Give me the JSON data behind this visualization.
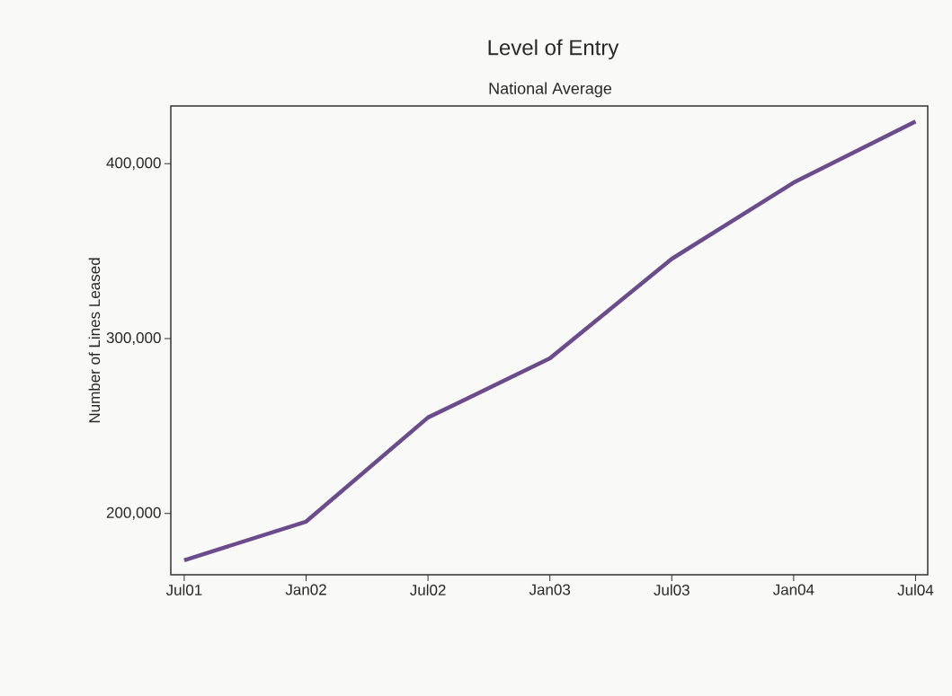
{
  "chart_data": {
    "type": "line",
    "title": "Level of Entry",
    "subtitle": "National Average",
    "ylabel": "Number of Lines Leased",
    "categories": [
      "Jul01",
      "Jan02",
      "Jul02",
      "Jan03",
      "Jul03",
      "Jan04",
      "Jul04"
    ],
    "series": [
      {
        "color": "#6a4c8c",
        "values": [
          173300,
          195400,
          254900,
          288700,
          345600,
          389200,
          424100
        ]
      }
    ],
    "ylim": [
      165000,
      433000
    ],
    "yticks": [
      {
        "value": 200000,
        "label": "200,000"
      },
      {
        "value": 300000,
        "label": "300,000"
      },
      {
        "value": 400000,
        "label": "400,000"
      }
    ]
  }
}
